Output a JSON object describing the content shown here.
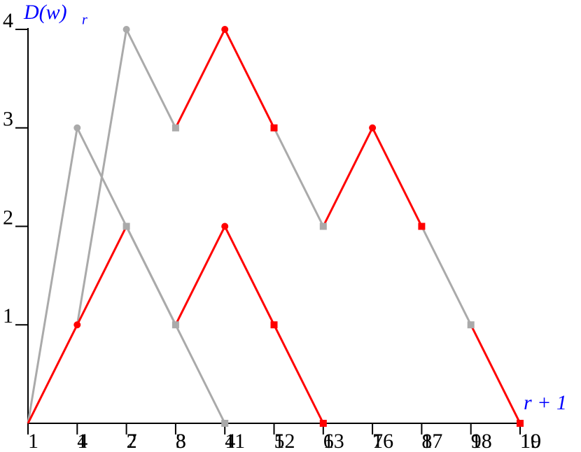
{
  "chart_data": {
    "type": "line",
    "ylabel": "D(w)",
    "ylabel_sub": "r",
    "xlabel": "r + 1",
    "xlim": [
      0,
      10
    ],
    "ylim": [
      0,
      4
    ],
    "yticks": [
      1,
      2,
      3,
      4
    ],
    "categories": [
      null,
      "1",
      "2",
      "3",
      "4",
      "5",
      "6",
      "7",
      "8",
      "9",
      "10"
    ],
    "categories2": [
      "1",
      "4",
      "7",
      "8",
      "11",
      "12",
      "13",
      "16",
      "17",
      "18",
      "19"
    ],
    "series": [
      {
        "color": "#aaaaaa",
        "x": [
          0,
          1,
          2,
          3,
          4
        ],
        "values": [
          0,
          3,
          2,
          1,
          0
        ],
        "line": true,
        "marker": "none"
      },
      {
        "color": "#aaaaaa",
        "x": [
          1,
          2,
          3
        ],
        "values": [
          1,
          4,
          3
        ],
        "line": true,
        "marker": "none"
      },
      {
        "color": "#aaaaaa",
        "x": [
          5,
          6
        ],
        "values": [
          3,
          2
        ],
        "line": true,
        "marker": "none"
      },
      {
        "color": "#aaaaaa",
        "x": [
          8,
          9
        ],
        "values": [
          2,
          1
        ],
        "line": true,
        "marker": "none"
      },
      {
        "color": "#ff0000",
        "x": [
          0,
          1,
          2
        ],
        "values": [
          0,
          1,
          2
        ],
        "line": true,
        "marker": "none"
      },
      {
        "color": "#ff0000",
        "x": [
          3,
          4,
          5,
          6
        ],
        "values": [
          1,
          2,
          1,
          0
        ],
        "line": true,
        "marker": "none"
      },
      {
        "color": "#ff0000",
        "x": [
          3,
          4,
          5
        ],
        "values": [
          3,
          4,
          3
        ],
        "line": true,
        "marker": "none"
      },
      {
        "color": "#ff0000",
        "x": [
          6,
          7,
          8
        ],
        "values": [
          2,
          3,
          2
        ],
        "line": true,
        "marker": "none"
      },
      {
        "color": "#ff0000",
        "x": [
          9,
          10
        ],
        "values": [
          1,
          0
        ],
        "line": true,
        "marker": "none"
      },
      {
        "color": "#aaaaaa",
        "x": [
          2,
          3
        ],
        "values": [
          2,
          1
        ],
        "line": true,
        "marker": "none"
      },
      {
        "color": "#aaaaaa",
        "x": [
          1,
          2
        ],
        "values": [
          3,
          4
        ],
        "line": false,
        "marker": "circle"
      },
      {
        "color": "#aaaaaa",
        "x": [
          2,
          3,
          3,
          4,
          6,
          9
        ],
        "values": [
          2,
          1,
          3,
          0,
          2,
          1
        ],
        "line": false,
        "marker": "square"
      },
      {
        "color": "#ff0000",
        "x": [
          1,
          4,
          4,
          7
        ],
        "values": [
          1,
          2,
          4,
          3
        ],
        "line": false,
        "marker": "circle"
      },
      {
        "color": "#ff0000",
        "x": [
          5,
          6,
          5,
          8,
          10
        ],
        "values": [
          1,
          0,
          3,
          2,
          0
        ],
        "line": false,
        "marker": "square"
      }
    ]
  }
}
